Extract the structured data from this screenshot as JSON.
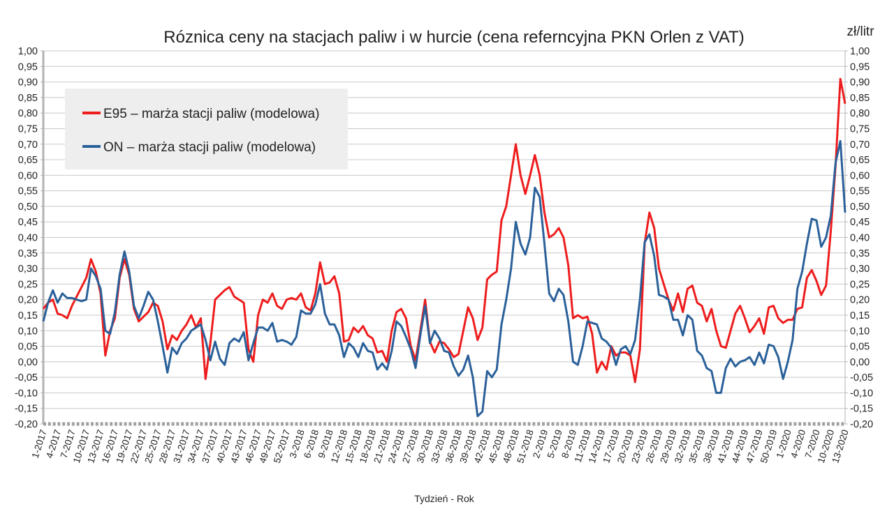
{
  "chart_data": {
    "type": "line",
    "title": "Róznica ceny na stacjach paliw i w hurcie (cena referncyjna PKN Orlen z VAT)",
    "xlabel": "Tydzień - Rok",
    "ylabel_right": "zł/litr",
    "ylim": [
      -0.2,
      1.0
    ],
    "ytick_step": 0.05,
    "negative_tick_color": "#e8192c",
    "grid": true,
    "legend_placement": "top-left",
    "x_tick_every_n_points": 3,
    "x_tick_labels": [
      "1-2017",
      "4-2017",
      "7-2017",
      "10-2017",
      "13-2017",
      "16-2017",
      "19-2017",
      "22-2017",
      "25-2017",
      "28-2017",
      "31-2017",
      "34-2017",
      "37-2017",
      "40-2017",
      "43-2017",
      "46-2017",
      "49-2017",
      "52-2017",
      "3-2018",
      "6-2018",
      "9-2018",
      "12-2018",
      "15-2018",
      "18-2018",
      "21-2018",
      "24-2018",
      "27-2018",
      "30-2018",
      "33-2018",
      "36-2018",
      "39-2018",
      "42-2018",
      "45-2018",
      "48-2018",
      "51-2018",
      "2-2019",
      "5-2019",
      "8-2019",
      "11-2019",
      "14-2019",
      "17-2019",
      "20-2019",
      "23-2019",
      "26-2019",
      "29-2019",
      "32-2019",
      "35-2019",
      "38-2019",
      "41-2019",
      "44-2019",
      "47-2019",
      "50-2019",
      "1-2020",
      "4-2020",
      "7-2020",
      "10-2020",
      "13-2020"
    ],
    "series": [
      {
        "name": "E95 – marża stacji paliw (modelowa)",
        "color": "#ee1c1c",
        "values": [
          0.17,
          0.19,
          0.2,
          0.155,
          0.15,
          0.14,
          0.18,
          0.21,
          0.24,
          0.27,
          0.33,
          0.29,
          0.22,
          0.02,
          0.1,
          0.14,
          0.27,
          0.33,
          0.28,
          0.17,
          0.13,
          0.145,
          0.16,
          0.19,
          0.18,
          0.13,
          0.04,
          0.085,
          0.07,
          0.1,
          0.12,
          0.15,
          0.11,
          0.14,
          -0.055,
          0.06,
          0.2,
          0.215,
          0.23,
          0.24,
          0.21,
          0.2,
          0.19,
          0.04,
          0.0,
          0.15,
          0.2,
          0.19,
          0.22,
          0.18,
          0.17,
          0.2,
          0.205,
          0.2,
          0.22,
          0.175,
          0.165,
          0.22,
          0.32,
          0.25,
          0.255,
          0.275,
          0.22,
          0.065,
          0.07,
          0.11,
          0.095,
          0.115,
          0.085,
          0.075,
          0.03,
          0.035,
          0.0,
          0.1,
          0.16,
          0.17,
          0.14,
          0.05,
          0.005,
          0.1,
          0.2,
          0.065,
          0.03,
          0.065,
          0.06,
          0.04,
          0.015,
          0.025,
          0.1,
          0.175,
          0.14,
          0.07,
          0.11,
          0.265,
          0.28,
          0.29,
          0.455,
          0.5,
          0.6,
          0.7,
          0.6,
          0.54,
          0.6,
          0.665,
          0.6,
          0.48,
          0.4,
          0.41,
          0.43,
          0.4,
          0.31,
          0.14,
          0.15,
          0.14,
          0.145,
          0.09,
          -0.035,
          0.0,
          -0.025,
          0.05,
          0.02,
          0.03,
          0.03,
          0.02,
          -0.065,
          0.04,
          0.38,
          0.48,
          0.43,
          0.3,
          0.25,
          0.2,
          0.165,
          0.22,
          0.16,
          0.235,
          0.245,
          0.19,
          0.18,
          0.13,
          0.17,
          0.1,
          0.05,
          0.045,
          0.1,
          0.155,
          0.18,
          0.14,
          0.095,
          0.115,
          0.14,
          0.09,
          0.175,
          0.18,
          0.14,
          0.125,
          0.135,
          0.135,
          0.17,
          0.175,
          0.27,
          0.295,
          0.26,
          0.215,
          0.245,
          0.42,
          0.63,
          0.91,
          0.83
        ]
      },
      {
        "name": "ON – marża stacji paliw (modelowa)",
        "color": "#2a6099",
        "values": [
          0.13,
          0.19,
          0.23,
          0.19,
          0.22,
          0.205,
          0.205,
          0.2,
          0.195,
          0.2,
          0.3,
          0.275,
          0.235,
          0.1,
          0.09,
          0.16,
          0.28,
          0.355,
          0.29,
          0.18,
          0.14,
          0.18,
          0.225,
          0.2,
          0.13,
          0.05,
          -0.035,
          0.045,
          0.025,
          0.06,
          0.075,
          0.1,
          0.11,
          0.12,
          0.07,
          0.005,
          0.065,
          0.01,
          -0.01,
          0.06,
          0.075,
          0.065,
          0.095,
          0.005,
          0.06,
          0.11,
          0.11,
          0.1,
          0.125,
          0.065,
          0.07,
          0.065,
          0.055,
          0.08,
          0.165,
          0.155,
          0.155,
          0.185,
          0.25,
          0.155,
          0.12,
          0.12,
          0.085,
          0.015,
          0.06,
          0.045,
          0.015,
          0.06,
          0.035,
          0.03,
          -0.025,
          -0.005,
          -0.025,
          0.035,
          0.13,
          0.115,
          0.08,
          0.04,
          -0.02,
          0.085,
          0.18,
          0.06,
          0.1,
          0.075,
          0.035,
          0.03,
          -0.015,
          -0.045,
          -0.025,
          0.02,
          -0.05,
          -0.175,
          -0.16,
          -0.03,
          -0.05,
          -0.025,
          0.12,
          0.2,
          0.3,
          0.45,
          0.38,
          0.345,
          0.4,
          0.56,
          0.53,
          0.38,
          0.22,
          0.195,
          0.235,
          0.215,
          0.13,
          0.0,
          -0.01,
          0.05,
          0.13,
          0.125,
          0.12,
          0.075,
          0.065,
          0.045,
          -0.01,
          0.04,
          0.05,
          0.025,
          0.07,
          0.2,
          0.385,
          0.41,
          0.34,
          0.215,
          0.21,
          0.2,
          0.135,
          0.135,
          0.085,
          0.15,
          0.135,
          0.035,
          0.02,
          -0.02,
          -0.03,
          -0.1,
          -0.1,
          -0.02,
          0.01,
          -0.015,
          0.0,
          0.005,
          0.015,
          -0.01,
          0.03,
          -0.005,
          0.055,
          0.05,
          0.015,
          -0.055,
          0.0,
          0.07,
          0.235,
          0.29,
          0.38,
          0.46,
          0.455,
          0.37,
          0.4,
          0.47,
          0.64,
          0.71,
          0.48
        ]
      }
    ]
  }
}
